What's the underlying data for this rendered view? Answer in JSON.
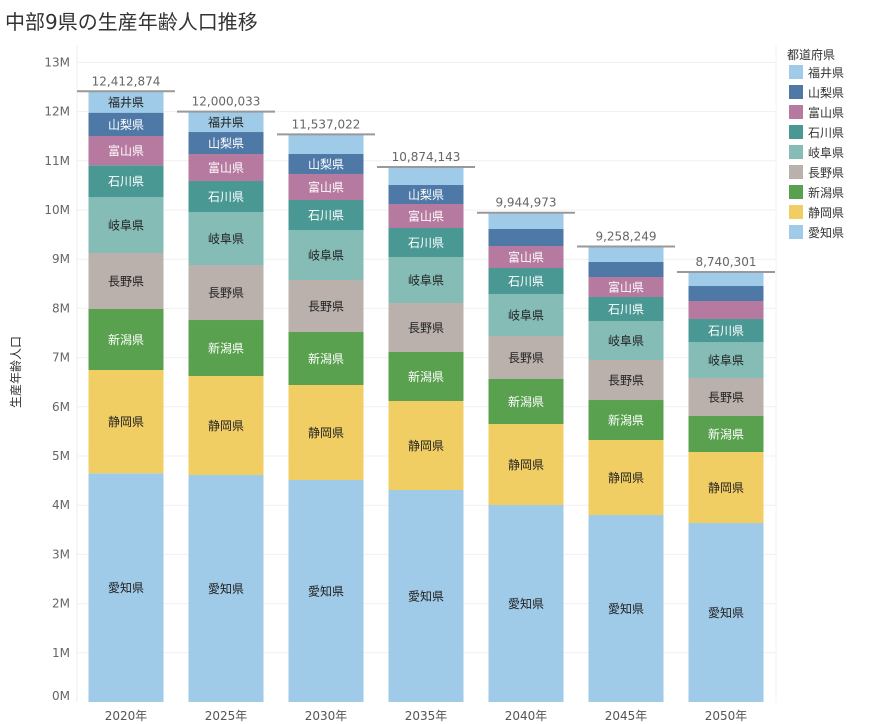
{
  "chart_data": {
    "type": "bar",
    "stacked": true,
    "title": "中部9県の生産年齢人口推移",
    "ylabel": "生産年齢人口",
    "xlabel": "",
    "ylim": [
      0,
      13000000
    ],
    "yticks": [
      "0M",
      "1M",
      "2M",
      "3M",
      "4M",
      "5M",
      "6M",
      "7M",
      "8M",
      "9M",
      "10M",
      "11M",
      "12M",
      "13M"
    ],
    "grid": true,
    "legend_title": "都道府県",
    "legend_position": "right",
    "categories": [
      "2020年",
      "2025年",
      "2030年",
      "2035年",
      "2040年",
      "2045年",
      "2050年"
    ],
    "totals": [
      "12,412,874",
      "12,000,033",
      "11,537,022",
      "10,874,143",
      "9,944,973",
      "9,258,249",
      "8,740,301"
    ],
    "series": [
      {
        "name": "愛知県",
        "color": "#a0cbe8",
        "text": "#222",
        "values": [
          4648000,
          4614000,
          4512000,
          4309000,
          4004000,
          3801000,
          3638000
        ]
      },
      {
        "name": "静岡県",
        "color": "#f1ce63",
        "text": "#222",
        "values": [
          2100000,
          2012000,
          1931000,
          1809000,
          1646000,
          1524000,
          1443000
        ]
      },
      {
        "name": "新潟県",
        "color": "#59a14f",
        "text": "#fff",
        "values": [
          1240000,
          1138000,
          1077000,
          996000,
          915000,
          813000,
          732000
        ]
      },
      {
        "name": "長野県",
        "color": "#bab0ac",
        "text": "#222",
        "values": [
          1138000,
          1118000,
          1057000,
          996000,
          874000,
          813000,
          772000
        ]
      },
      {
        "name": "岐阜県",
        "color": "#86bcb6",
        "text": "#222",
        "values": [
          1138000,
          1077000,
          1016000,
          935000,
          854000,
          793000,
          732000
        ]
      },
      {
        "name": "石川県",
        "color": "#499894",
        "text": "#fff",
        "values": [
          644000,
          630000,
          610000,
          589000,
          528000,
          488000,
          468000
        ]
      },
      {
        "name": "富山県",
        "color": "#b6799f",
        "text": "#fff",
        "values": [
          596000,
          549000,
          529000,
          488000,
          447000,
          406000,
          365000
        ]
      },
      {
        "name": "山梨県",
        "color": "#4e79a7",
        "text": "#fff",
        "values": [
          474000,
          447000,
          406000,
          386000,
          346000,
          305000,
          305000
        ]
      },
      {
        "name": "福井県",
        "color": "#a0cbe8",
        "text": "#222",
        "values": [
          434874,
          415033,
          399022,
          366143,
          330973,
          315249,
          285301
        ]
      }
    ],
    "legend_order": [
      "福井県",
      "山梨県",
      "富山県",
      "石川県",
      "岐阜県",
      "長野県",
      "新潟県",
      "静岡県",
      "愛知県"
    ],
    "hidden_labels": [
      [
        2,
        "福井県"
      ],
      [
        3,
        "福井県"
      ],
      [
        4,
        "福井県"
      ],
      [
        4,
        "山梨県"
      ],
      [
        5,
        "福井県"
      ],
      [
        5,
        "山梨県"
      ],
      [
        6,
        "福井県"
      ],
      [
        6,
        "山梨県"
      ],
      [
        6,
        "富山県"
      ]
    ]
  }
}
